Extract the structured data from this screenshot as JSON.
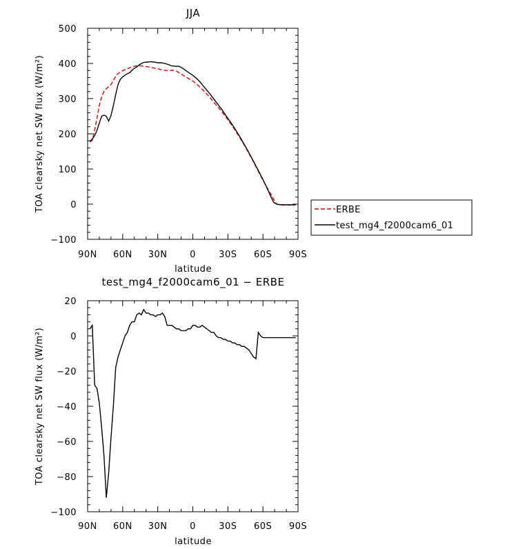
{
  "chart_data": [
    {
      "type": "line",
      "title": "JJA",
      "xlabel": "latitude",
      "ylabel": "TOA clearsky net SW flux (W/m²)",
      "xlim": [
        90,
        -90
      ],
      "ylim": [
        -100,
        500
      ],
      "x_ticks": [
        90,
        60,
        30,
        0,
        -30,
        -60,
        -90
      ],
      "x_tick_labels": [
        "90N",
        "60N",
        "30N",
        "0",
        "30S",
        "60S",
        "90S"
      ],
      "y_ticks": [
        -100,
        0,
        100,
        200,
        300,
        400,
        500
      ],
      "y_tick_labels": [
        "−100",
        "0",
        "100",
        "200",
        "300",
        "400",
        "500"
      ],
      "series": [
        {
          "name": "ERBE",
          "color": "#e00000",
          "style": "dashed",
          "points": [
            [
              88,
              176
            ],
            [
              86,
              182
            ],
            [
              84,
              210
            ],
            [
              82,
              245
            ],
            [
              80,
              280
            ],
            [
              78,
              305
            ],
            [
              76,
              320
            ],
            [
              74,
              328
            ],
            [
              72,
              334
            ],
            [
              70,
              340
            ],
            [
              68,
              352
            ],
            [
              65,
              368
            ],
            [
              62,
              376
            ],
            [
              59,
              381
            ],
            [
              56,
              385
            ],
            [
              53,
              389
            ],
            [
              50,
              392
            ],
            [
              47,
              394
            ],
            [
              44,
              393
            ],
            [
              41,
              392
            ],
            [
              38,
              390
            ],
            [
              35,
              388
            ],
            [
              32,
              386
            ],
            [
              29,
              384
            ],
            [
              26,
              382
            ],
            [
              23,
              380
            ],
            [
              20,
              380
            ],
            [
              17,
              381
            ],
            [
              14,
              378
            ],
            [
              11,
              372
            ],
            [
              8,
              366
            ],
            [
              5,
              360
            ],
            [
              2,
              354
            ],
            [
              0,
              350
            ],
            [
              -5,
              336
            ],
            [
              -10,
              320
            ],
            [
              -15,
              302
            ],
            [
              -20,
              282
            ],
            [
              -25,
              262
            ],
            [
              -30,
              240
            ],
            [
              -35,
              216
            ],
            [
              -40,
              190
            ],
            [
              -45,
              162
            ],
            [
              -50,
              132
            ],
            [
              -55,
              100
            ],
            [
              -60,
              68
            ],
            [
              -65,
              38
            ],
            [
              -68,
              22
            ],
            [
              -70,
              8
            ],
            [
              -72,
              0
            ],
            [
              -75,
              -2
            ],
            [
              -80,
              -2
            ],
            [
              -85,
              -2
            ],
            [
              -88,
              -2
            ]
          ]
        },
        {
          "name": "test_mg4_f2000cam6_01",
          "color": "#000000",
          "style": "solid",
          "points": [
            [
              88,
              179
            ],
            [
              86,
              185
            ],
            [
              84,
              195
            ],
            [
              82,
              210
            ],
            [
              80,
              230
            ],
            [
              78,
              250
            ],
            [
              76,
              253
            ],
            [
              74,
              250
            ],
            [
              72,
              236
            ],
            [
              70,
              252
            ],
            [
              68,
              280
            ],
            [
              66,
              312
            ],
            [
              64,
              340
            ],
            [
              62,
              355
            ],
            [
              60,
              362
            ],
            [
              57,
              369
            ],
            [
              54,
              374
            ],
            [
              51,
              384
            ],
            [
              48,
              390
            ],
            [
              45,
              398
            ],
            [
              42,
              403
            ],
            [
              39,
              404
            ],
            [
              36,
              405
            ],
            [
              33,
              404
            ],
            [
              30,
              402
            ],
            [
              27,
              402
            ],
            [
              24,
              400
            ],
            [
              21,
              397
            ],
            [
              18,
              393
            ],
            [
              15,
              392
            ],
            [
              12,
              392
            ],
            [
              9,
              387
            ],
            [
              6,
              380
            ],
            [
              3,
              373
            ],
            [
              0,
              366
            ],
            [
              -3,
              358
            ],
            [
              -6,
              348
            ],
            [
              -10,
              332
            ],
            [
              -15,
              312
            ],
            [
              -20,
              290
            ],
            [
              -25,
              268
            ],
            [
              -30,
              244
            ],
            [
              -35,
              220
            ],
            [
              -40,
              193
            ],
            [
              -45,
              164
            ],
            [
              -50,
              134
            ],
            [
              -55,
              102
            ],
            [
              -60,
              70
            ],
            [
              -64,
              42
            ],
            [
              -67,
              20
            ],
            [
              -69,
              6
            ],
            [
              -71,
              1
            ],
            [
              -73,
              -1
            ],
            [
              -77,
              -2
            ],
            [
              -82,
              -2
            ],
            [
              -86,
              -2
            ],
            [
              -88,
              -2
            ]
          ]
        }
      ],
      "legend": {
        "position": "right",
        "entries": [
          {
            "label": "ERBE",
            "color": "#e00000",
            "style": "dashed"
          },
          {
            "label": "test_mg4_f2000cam6_01",
            "color": "#000000",
            "style": "solid"
          }
        ]
      }
    },
    {
      "type": "line",
      "title": "test_mg4_f2000cam6_01 − ERBE",
      "xlabel": "latitude",
      "ylabel": "TOA clearsky net SW flux (W/m²)",
      "xlim": [
        90,
        -90
      ],
      "ylim": [
        -100,
        20
      ],
      "x_ticks": [
        90,
        60,
        30,
        0,
        -30,
        -60,
        -90
      ],
      "x_tick_labels": [
        "90N",
        "60N",
        "30N",
        "0",
        "30S",
        "60S",
        "90S"
      ],
      "y_ticks": [
        -100,
        -80,
        -60,
        -40,
        -20,
        0,
        20
      ],
      "y_tick_labels": [
        "−100",
        "−80",
        "−60",
        "−40",
        "−20",
        "0",
        "20"
      ],
      "series": [
        {
          "name": "test_mg4_f2000cam6_01 − ERBE",
          "color": "#000000",
          "style": "solid",
          "points": [
            [
              88,
              4
            ],
            [
              86,
              6
            ],
            [
              84,
              -28
            ],
            [
              82,
              -30
            ],
            [
              80,
              -38
            ],
            [
              78,
              -52
            ],
            [
              76,
              -68
            ],
            [
              74,
              -92
            ],
            [
              72,
              -78
            ],
            [
              70,
              -58
            ],
            [
              68,
              -40
            ],
            [
              66,
              -18
            ],
            [
              64,
              -12
            ],
            [
              62,
              -8
            ],
            [
              60,
              -4
            ],
            [
              58,
              0
            ],
            [
              56,
              2
            ],
            [
              54,
              6
            ],
            [
              52,
              8
            ],
            [
              50,
              8
            ],
            [
              48,
              12
            ],
            [
              46,
              13
            ],
            [
              44,
              12
            ],
            [
              42,
              15
            ],
            [
              40,
              13
            ],
            [
              38,
              13
            ],
            [
              36,
              12
            ],
            [
              34,
              12
            ],
            [
              32,
              11
            ],
            [
              30,
              12
            ],
            [
              28,
              12
            ],
            [
              26,
              13
            ],
            [
              24,
              11
            ],
            [
              22,
              6
            ],
            [
              20,
              6
            ],
            [
              18,
              6
            ],
            [
              16,
              5
            ],
            [
              14,
              4
            ],
            [
              12,
              4
            ],
            [
              10,
              3
            ],
            [
              8,
              3
            ],
            [
              6,
              3
            ],
            [
              4,
              4
            ],
            [
              2,
              4
            ],
            [
              0,
              6
            ],
            [
              -2,
              6
            ],
            [
              -4,
              5
            ],
            [
              -6,
              5
            ],
            [
              -8,
              6
            ],
            [
              -10,
              5
            ],
            [
              -12,
              4
            ],
            [
              -14,
              3
            ],
            [
              -16,
              2
            ],
            [
              -18,
              2
            ],
            [
              -20,
              0
            ],
            [
              -22,
              -1
            ],
            [
              -24,
              -1
            ],
            [
              -26,
              -2
            ],
            [
              -28,
              -2
            ],
            [
              -30,
              -3
            ],
            [
              -32,
              -3
            ],
            [
              -34,
              -4
            ],
            [
              -36,
              -4
            ],
            [
              -38,
              -5
            ],
            [
              -40,
              -5
            ],
            [
              -42,
              -6
            ],
            [
              -44,
              -6
            ],
            [
              -46,
              -7
            ],
            [
              -48,
              -8
            ],
            [
              -50,
              -10
            ],
            [
              -52,
              -12
            ],
            [
              -54,
              -13
            ],
            [
              -56,
              2
            ],
            [
              -58,
              0
            ],
            [
              -60,
              -1
            ],
            [
              -62,
              -1
            ],
            [
              -64,
              -1
            ],
            [
              -66,
              -1
            ],
            [
              -68,
              -1
            ],
            [
              -70,
              -1
            ],
            [
              -72,
              -1
            ],
            [
              -74,
              -1
            ],
            [
              -76,
              -1
            ],
            [
              -78,
              -1
            ],
            [
              -80,
              -1
            ],
            [
              -84,
              -1
            ],
            [
              -88,
              -1
            ]
          ]
        }
      ]
    }
  ]
}
